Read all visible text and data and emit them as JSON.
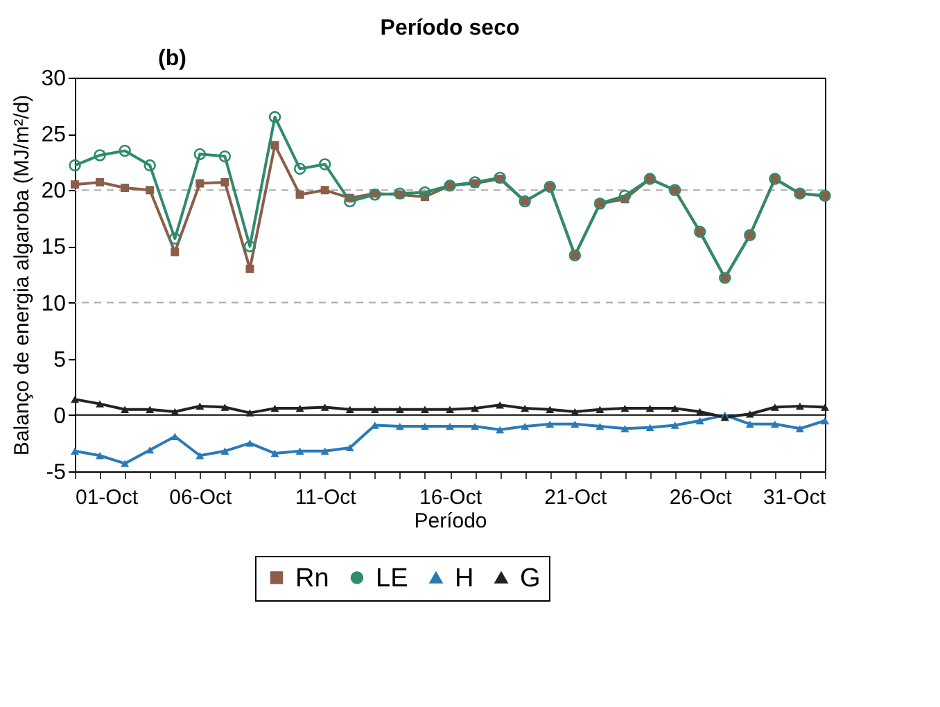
{
  "chart_data": {
    "type": "line",
    "title": "Período seco",
    "xlabel": "Período",
    "ylabel": "Balanço de energia algaroba (MJ/m²/d)",
    "annotations": [
      "(b)"
    ],
    "x": [
      "--10-01",
      "--10-02",
      "--10-03",
      "--10-04",
      "--10-05",
      "--10-06",
      "--10-07",
      "--10-08",
      "--10-09",
      "--10-10",
      "--10-11",
      "--10-12",
      "--10-13",
      "--10-14",
      "--10-15",
      "--10-16",
      "--10-17",
      "--10-18",
      "--10-19",
      "--10-20",
      "--10-21",
      "--10-22",
      "--10-23",
      "--10-24",
      "--10-25",
      "--10-26",
      "--10-27",
      "--10-28",
      "--10-29",
      "--10-30",
      "--10-31"
    ],
    "series": [
      {
        "name": "Rn",
        "color": "#8b5e4a",
        "marker": "square",
        "values": [
          20.5,
          20.7,
          20.2,
          20.0,
          14.5,
          20.6,
          20.7,
          13.0,
          24.0,
          19.6,
          20.0,
          19.3,
          19.7,
          19.6,
          19.4,
          20.4,
          20.6,
          21.0,
          19.0,
          20.3,
          14.2,
          18.8,
          19.2,
          21.0,
          20.0,
          16.3,
          12.2,
          16.0,
          21.0,
          19.7,
          19.5
        ]
      },
      {
        "name": "LE",
        "color": "#2e8b6b",
        "marker": "circle",
        "values": [
          22.2,
          23.1,
          23.5,
          22.2,
          15.7,
          23.2,
          23.0,
          15.0,
          26.5,
          21.9,
          22.3,
          19.0,
          19.6,
          19.7,
          19.8,
          20.4,
          20.7,
          21.1,
          19.0,
          20.3,
          14.2,
          18.8,
          19.5,
          21.0,
          20.0,
          16.3,
          12.2,
          16.0,
          21.0,
          19.7,
          19.5
        ]
      },
      {
        "name": "H",
        "color": "#2a7ab8",
        "marker": "triangle",
        "values": [
          -3.2,
          -3.6,
          -4.3,
          -3.1,
          -1.9,
          -3.6,
          -3.2,
          -2.5,
          -3.4,
          -3.2,
          -3.2,
          -2.9,
          -0.9,
          -1.0,
          -1.0,
          -1.0,
          -1.0,
          -1.3,
          -1.0,
          -0.8,
          -0.8,
          -1.0,
          -1.2,
          -1.1,
          -0.9,
          -0.5,
          0.0,
          -0.8,
          -0.8,
          -1.2,
          -0.5
        ]
      },
      {
        "name": "G",
        "color": "#222222",
        "marker": "triangle",
        "values": [
          1.4,
          1.0,
          0.5,
          0.5,
          0.3,
          0.8,
          0.7,
          0.2,
          0.6,
          0.6,
          0.7,
          0.5,
          0.5,
          0.5,
          0.5,
          0.5,
          0.6,
          0.9,
          0.6,
          0.5,
          0.3,
          0.5,
          0.6,
          0.6,
          0.6,
          0.3,
          -0.2,
          0.1,
          0.7,
          0.8,
          0.7
        ]
      }
    ],
    "xlim": [
      "--10-01",
      "--10-31"
    ],
    "xticks": [
      {
        "value": "--10-01",
        "label": "01-Oct"
      },
      {
        "value": "--10-02",
        "label": null
      },
      {
        "value": "--10-03",
        "label": null
      },
      {
        "value": "--10-04",
        "label": null
      },
      {
        "value": "--10-05",
        "label": null
      },
      {
        "value": "--10-06",
        "label": "06-Oct"
      },
      {
        "value": "--10-07",
        "label": null
      },
      {
        "value": "--10-08",
        "label": null
      },
      {
        "value": "--10-09",
        "label": null
      },
      {
        "value": "--10-10",
        "label": null
      },
      {
        "value": "--10-11",
        "label": "11-Oct"
      },
      {
        "value": "--10-12",
        "label": null
      },
      {
        "value": "--10-13",
        "label": null
      },
      {
        "value": "--10-14",
        "label": null
      },
      {
        "value": "--10-15",
        "label": null
      },
      {
        "value": "--10-16",
        "label": "16-Oct"
      },
      {
        "value": "--10-17",
        "label": null
      },
      {
        "value": "--10-18",
        "label": null
      },
      {
        "value": "--10-19",
        "label": null
      },
      {
        "value": "--10-20",
        "label": null
      },
      {
        "value": "--10-21",
        "label": "21-Oct"
      },
      {
        "value": "--10-22",
        "label": null
      },
      {
        "value": "--10-23",
        "label": null
      },
      {
        "value": "--10-24",
        "label": null
      },
      {
        "value": "--10-25",
        "label": null
      },
      {
        "value": "--10-26",
        "label": "26-Oct"
      },
      {
        "value": "--10-27",
        "label": null
      },
      {
        "value": "--10-28",
        "label": null
      },
      {
        "value": "--10-29",
        "label": null
      },
      {
        "value": "--10-30",
        "label": null
      },
      {
        "value": "--10-31",
        "label": "31-Oct"
      }
    ],
    "ylim": [
      -5,
      30
    ],
    "yticks": [
      -5,
      0,
      5,
      10,
      15,
      20,
      25,
      30
    ],
    "ref_lines": [
      {
        "axis": "y",
        "value": 20,
        "color": "#aaaaaa",
        "line_style": "dashed"
      },
      {
        "axis": "y",
        "value": 10,
        "color": "#aaaaaa",
        "line_style": "dashed"
      },
      {
        "axis": "y",
        "value": 0,
        "color": "#000000",
        "line_style": "solid"
      }
    ],
    "legend": "bottom",
    "line_style": "solid"
  }
}
